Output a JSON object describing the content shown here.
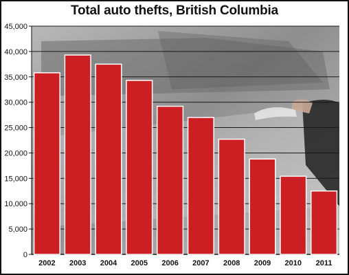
{
  "chart_data": {
    "type": "bar",
    "title": "Total auto thefts, British Columbia",
    "xlabel": "",
    "ylabel": "",
    "categories": [
      "2002",
      "2003",
      "2004",
      "2005",
      "2006",
      "2007",
      "2008",
      "2009",
      "2010",
      "2011"
    ],
    "values": [
      35800,
      39300,
      37500,
      34300,
      29200,
      27000,
      22700,
      18800,
      15400,
      12500
    ],
    "ylim": [
      0,
      45000
    ],
    "yticks": [
      "0",
      "5,000",
      "10,000",
      "15,000",
      "20,000",
      "25,000",
      "30,000",
      "35,000",
      "40,000",
      "45,000"
    ],
    "grid": true,
    "legend": "none",
    "colors": {
      "bar": "#cc1f24",
      "bar_edge": "#ffffff",
      "grid": "#1a1a1a",
      "background_photo": "#9a9a9a"
    }
  }
}
